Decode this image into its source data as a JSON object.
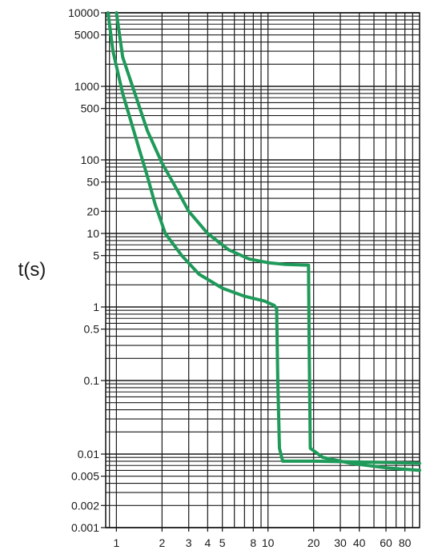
{
  "chart_data": {
    "type": "line",
    "ylabel": "t(s)",
    "xlabel": "",
    "title": "",
    "y_scale": "log",
    "ylim": [
      0.001,
      10000
    ],
    "y_ticks": [
      {
        "value": 10000,
        "label": "10000"
      },
      {
        "value": 5000,
        "label": "5000"
      },
      {
        "value": 1000,
        "label": "1000"
      },
      {
        "value": 500,
        "label": "500"
      },
      {
        "value": 100,
        "label": "100"
      },
      {
        "value": 50,
        "label": "50"
      },
      {
        "value": 20,
        "label": "20"
      },
      {
        "value": 10,
        "label": "10"
      },
      {
        "value": 5,
        "label": "5"
      },
      {
        "value": 1,
        "label": "1"
      },
      {
        "value": 0.5,
        "label": "0.5"
      },
      {
        "value": 0.1,
        "label": "0.1"
      },
      {
        "value": 0.01,
        "label": "0.01"
      },
      {
        "value": 0.005,
        "label": "0.005"
      },
      {
        "value": 0.002,
        "label": "0.002"
      },
      {
        "value": 0.001,
        "label": "0.001"
      }
    ],
    "x_scale": "log",
    "xlim": [
      0.85,
      100
    ],
    "x_ticks": [
      {
        "value": 1,
        "label": "1"
      },
      {
        "value": 2,
        "label": "2"
      },
      {
        "value": 3,
        "label": "3"
      },
      {
        "value": 4,
        "label": "4"
      },
      {
        "value": 5,
        "label": "5"
      },
      {
        "value": 8,
        "label": "8"
      },
      {
        "value": 10,
        "label": "10"
      },
      {
        "value": 20,
        "label": "20"
      },
      {
        "value": 30,
        "label": "30"
      },
      {
        "value": 40,
        "label": "40"
      },
      {
        "value": 60,
        "label": "60"
      },
      {
        "value": 80,
        "label": "80"
      }
    ],
    "grid": true,
    "series_color": "#1f9a5a",
    "series": [
      {
        "points": [
          [
            1.0,
            10000
          ],
          [
            1.1,
            2500
          ],
          [
            1.3,
            900
          ],
          [
            1.6,
            250
          ],
          [
            2.0,
            90
          ],
          [
            2.5,
            40
          ],
          [
            3.0,
            20
          ],
          [
            4.0,
            10
          ],
          [
            5.5,
            6
          ],
          [
            7.5,
            4.5
          ],
          [
            10,
            4.0
          ],
          [
            13,
            3.8
          ],
          [
            18.5,
            3.7
          ],
          [
            18.7,
            0.3
          ],
          [
            19.0,
            0.012
          ],
          [
            23,
            0.009
          ],
          [
            35,
            0.0075
          ],
          [
            60,
            0.0065
          ],
          [
            100,
            0.006
          ]
        ]
      },
      {
        "points": [
          [
            0.88,
            10000
          ],
          [
            0.95,
            3000
          ],
          [
            1.1,
            800
          ],
          [
            1.4,
            150
          ],
          [
            1.6,
            60
          ],
          [
            1.8,
            25
          ],
          [
            2.1,
            10
          ],
          [
            2.7,
            5
          ],
          [
            3.5,
            2.8
          ],
          [
            5.0,
            1.8
          ],
          [
            7.0,
            1.4
          ],
          [
            9.5,
            1.2
          ],
          [
            11.0,
            1.05
          ],
          [
            11.4,
            0.95
          ],
          [
            11.6,
            0.1
          ],
          [
            11.9,
            0.012
          ],
          [
            12.5,
            0.008
          ],
          [
            20,
            0.008
          ],
          [
            40,
            0.0078
          ],
          [
            100,
            0.0075
          ]
        ]
      }
    ]
  }
}
